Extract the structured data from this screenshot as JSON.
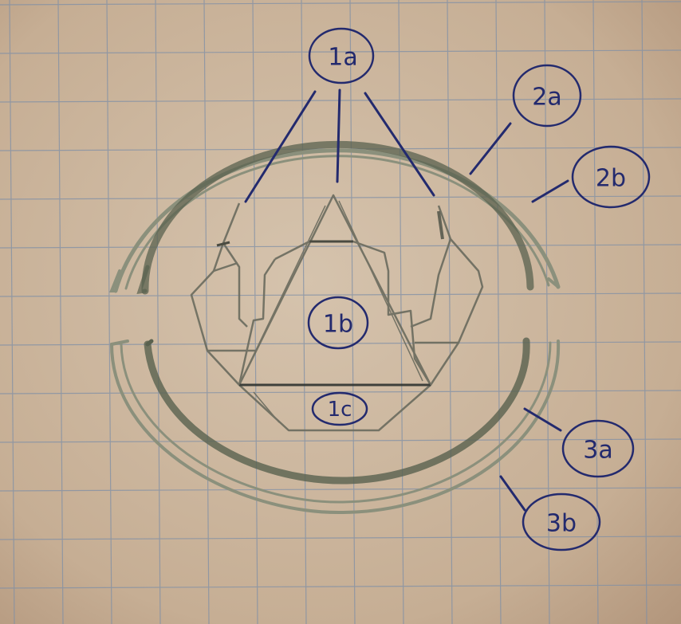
{
  "diagram": {
    "callouts": [
      {
        "id": "1a",
        "label": "1a"
      },
      {
        "id": "1b",
        "label": "1b"
      },
      {
        "id": "1c",
        "label": "1c"
      },
      {
        "id": "2a",
        "label": "2a"
      },
      {
        "id": "2b",
        "label": "2b"
      },
      {
        "id": "3a",
        "label": "3a"
      },
      {
        "id": "3b",
        "label": "3b"
      }
    ],
    "colors": {
      "paper": "#c9b39a",
      "grid": "#7f8fa6",
      "pencil_dark": "#59614f",
      "pencil_light": "#8b907c",
      "pen_ink": "#232a6e"
    }
  }
}
